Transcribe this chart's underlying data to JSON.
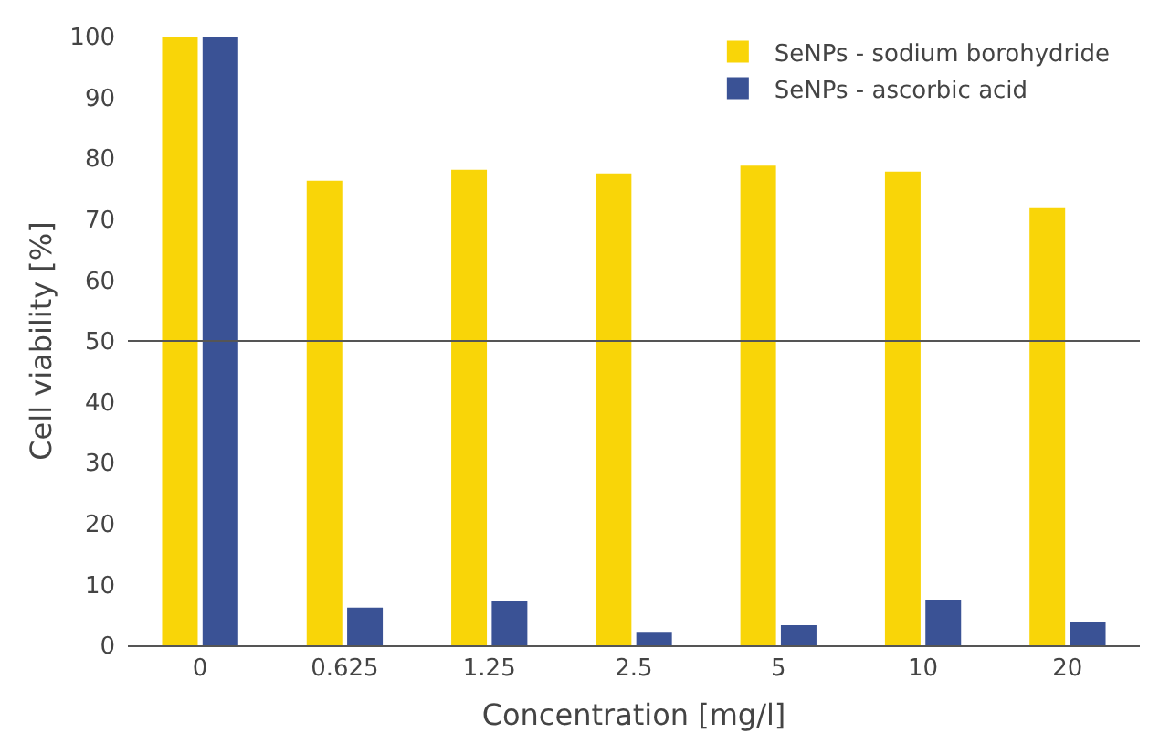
{
  "chart_data": {
    "type": "bar",
    "xlabel": "Concentration [mg/l]",
    "ylabel": "Cell viability [%]",
    "categories": [
      "0",
      "0.625",
      "1.25",
      "2.5",
      "5",
      "10",
      "20"
    ],
    "series": [
      {
        "name": "SeNPs - sodium borohydride",
        "color": "#f9d508",
        "values": [
          100,
          76.3,
          78.1,
          77.5,
          78.8,
          77.8,
          71.8
        ]
      },
      {
        "name": "SeNPs - ascorbic acid",
        "color": "#3a5295",
        "values": [
          100,
          6.2,
          7.3,
          2.2,
          3.3,
          7.5,
          3.8
        ]
      }
    ],
    "ylim": [
      0,
      100
    ],
    "yticks": [
      0,
      10,
      20,
      30,
      40,
      50,
      60,
      70,
      80,
      90,
      100
    ],
    "ref_lines": [
      {
        "axis": "y",
        "value": 50,
        "color": "#555555"
      }
    ],
    "grid": false,
    "legend": "top right"
  }
}
